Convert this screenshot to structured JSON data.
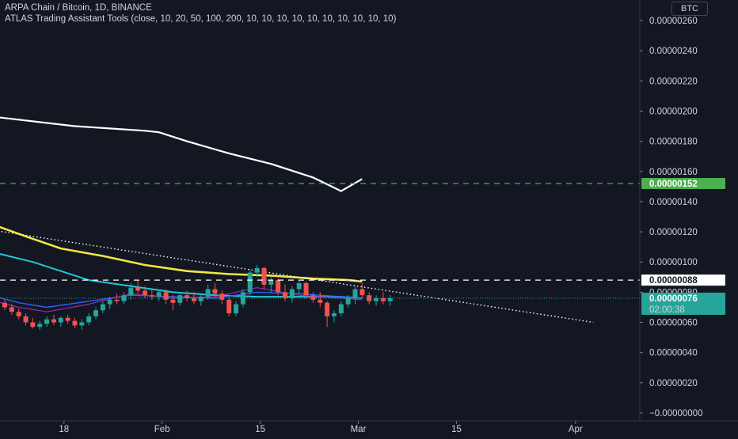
{
  "legend": {
    "symbol_line": "ARPA Chain / Bitcoin, 1D, BINANCE",
    "indicator_line": "ATLAS Trading Assistant Tools (close, 10, 20, 50, 100, 200, 10, 10, 10, 10, 10, 10, 10, 10, 10, 10)"
  },
  "currency_button": "BTC",
  "colors": {
    "background": "#131722",
    "up": "#26a69a",
    "down": "#ef5350",
    "ma200": "#ffffff",
    "ma100": "#f5e642",
    "ma50": "#26c6da",
    "ma20": "#2962ff",
    "ma10": "#9c27b0",
    "support_line": "#4caf50"
  },
  "chart_data": {
    "type": "candlestick",
    "y_axis": {
      "min": -1e-07,
      "max": 2.8e-06,
      "ticks": [
        "0.00000260",
        "0.00000240",
        "0.00000220",
        "0.00000200",
        "0.00000180",
        "0.00000160",
        "0.00000140",
        "0.00000120",
        "0.00000100",
        "0.00000080",
        "0.00000060",
        "0.00000040",
        "0.00000020",
        "−0.00000000"
      ]
    },
    "x_axis": {
      "labels": [
        {
          "text": "18",
          "day": 8
        },
        {
          "text": "Feb",
          "day": 22
        },
        {
          "text": "15",
          "day": 36
        },
        {
          "text": "Mar",
          "day": 50
        },
        {
          "text": "15",
          "day": 64
        },
        {
          "text": "Apr",
          "day": 81
        }
      ]
    },
    "candles": [
      [
        73,
        75,
        68,
        70
      ],
      [
        70,
        72,
        65,
        67
      ],
      [
        67,
        69,
        62,
        64
      ],
      [
        64,
        66,
        58,
        60
      ],
      [
        60,
        63,
        56,
        57
      ],
      [
        57,
        61,
        55,
        59
      ],
      [
        59,
        64,
        57,
        62
      ],
      [
        62,
        65,
        58,
        60
      ],
      [
        60,
        64,
        57,
        63
      ],
      [
        63,
        65,
        59,
        61
      ],
      [
        61,
        63,
        56,
        58
      ],
      [
        58,
        62,
        55,
        60
      ],
      [
        60,
        66,
        58,
        64
      ],
      [
        64,
        70,
        62,
        68
      ],
      [
        68,
        74,
        66,
        72
      ],
      [
        72,
        77,
        69,
        75
      ],
      [
        75,
        79,
        72,
        74
      ],
      [
        74,
        80,
        72,
        78
      ],
      [
        78,
        86,
        75,
        83
      ],
      [
        83,
        88,
        79,
        81
      ],
      [
        81,
        84,
        76,
        78
      ],
      [
        78,
        82,
        75,
        77
      ],
      [
        77,
        82,
        74,
        80
      ],
      [
        80,
        82,
        72,
        75
      ],
      [
        75,
        78,
        68,
        73
      ],
      [
        73,
        80,
        71,
        78
      ],
      [
        78,
        81,
        74,
        76
      ],
      [
        76,
        80,
        72,
        74
      ],
      [
        74,
        78,
        71,
        77
      ],
      [
        77,
        85,
        75,
        82
      ],
      [
        82,
        86,
        77,
        79
      ],
      [
        79,
        81,
        72,
        75
      ],
      [
        75,
        77,
        64,
        66
      ],
      [
        66,
        74,
        64,
        72
      ],
      [
        72,
        82,
        70,
        80
      ],
      [
        80,
        95,
        78,
        93
      ],
      [
        93,
        98,
        90,
        96
      ],
      [
        96,
        97,
        82,
        85
      ],
      [
        85,
        90,
        80,
        88
      ],
      [
        88,
        89,
        78,
        80
      ],
      [
        80,
        85,
        74,
        76
      ],
      [
        76,
        84,
        73,
        82
      ],
      [
        82,
        88,
        79,
        86
      ],
      [
        86,
        87,
        76,
        78
      ],
      [
        78,
        80,
        73,
        75
      ],
      [
        75,
        80,
        70,
        73
      ],
      [
        73,
        74,
        57,
        64
      ],
      [
        64,
        68,
        60,
        66
      ],
      [
        66,
        74,
        64,
        72
      ],
      [
        72,
        78,
        70,
        76
      ],
      [
        76,
        84,
        72,
        82
      ],
      [
        82,
        86,
        76,
        78
      ],
      [
        78,
        80,
        72,
        74
      ],
      [
        74,
        78,
        71,
        76
      ],
      [
        76,
        80,
        72,
        74
      ],
      [
        74,
        78,
        71,
        76
      ]
    ],
    "ma200": [
      [
        -3,
        197
      ],
      [
        10,
        190
      ],
      [
        20,
        187
      ],
      [
        22,
        186
      ],
      [
        26,
        180
      ],
      [
        32,
        172
      ],
      [
        38,
        165
      ],
      [
        44,
        156
      ],
      [
        48,
        147
      ],
      [
        51,
        155
      ]
    ],
    "ma100": [
      [
        -3,
        127
      ],
      [
        3,
        117
      ],
      [
        8,
        109
      ],
      [
        14,
        104
      ],
      [
        20,
        98
      ],
      [
        26,
        94
      ],
      [
        32,
        92
      ],
      [
        38,
        91
      ],
      [
        44,
        89
      ],
      [
        49,
        88
      ],
      [
        51,
        87
      ]
    ],
    "ma50": [
      [
        -3,
        108
      ],
      [
        4,
        100
      ],
      [
        8,
        94
      ],
      [
        12,
        88
      ],
      [
        18,
        84
      ],
      [
        24,
        80
      ],
      [
        30,
        78
      ],
      [
        36,
        77
      ],
      [
        42,
        77
      ],
      [
        48,
        77
      ],
      [
        51,
        76
      ]
    ],
    "ma20": [
      [
        -3,
        79
      ],
      [
        2,
        73
      ],
      [
        6,
        70
      ],
      [
        12,
        74
      ],
      [
        18,
        78
      ],
      [
        24,
        77
      ],
      [
        30,
        76
      ],
      [
        36,
        80
      ],
      [
        42,
        79
      ],
      [
        48,
        77
      ],
      [
        51,
        76
      ]
    ],
    "ma10": [
      [
        -3,
        76
      ],
      [
        2,
        70
      ],
      [
        6,
        67
      ],
      [
        12,
        72
      ],
      [
        18,
        79
      ],
      [
        24,
        76
      ],
      [
        30,
        77
      ],
      [
        36,
        83
      ],
      [
        42,
        78
      ],
      [
        48,
        76
      ],
      [
        51,
        75
      ]
    ],
    "trendline": [
      [
        -3,
        122
      ],
      [
        84,
        60
      ]
    ],
    "hlines": [
      {
        "value": 152,
        "style": "dashed",
        "color": "#4caf50",
        "label": "0.00000152",
        "label_bg": "#4caf50",
        "label_color": "#ffffff"
      },
      {
        "value": 88,
        "style": "dashed",
        "color": "#ffffff",
        "label": "0.00000088",
        "label_bg": "#ffffff",
        "label_color": "#131722"
      }
    ],
    "last_price": {
      "value": 76,
      "label": "0.00000076",
      "countdown": "02:00:38",
      "color": "#26a69a"
    },
    "price_unit": "satoshi (1e-8 BTC)"
  }
}
